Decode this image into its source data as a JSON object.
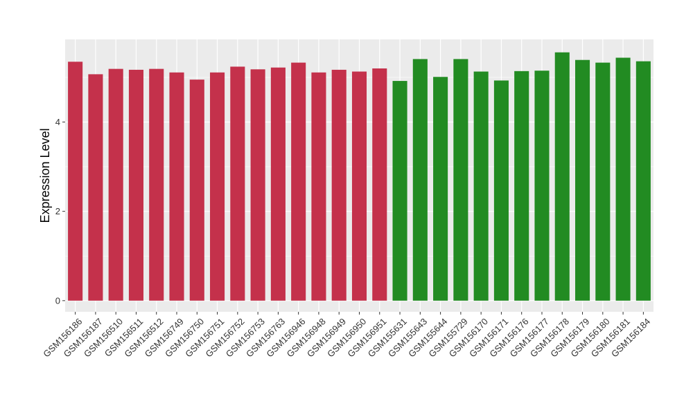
{
  "chart_data": {
    "type": "bar",
    "title": "",
    "xlabel": "",
    "ylabel": "Expression Level",
    "ylim": [
      -0.25,
      5.85
    ],
    "yticks": [
      0,
      2,
      4
    ],
    "grid": true,
    "legend": "none",
    "categories": [
      "GSM156186",
      "GSM156187",
      "GSM156510",
      "GSM156511",
      "GSM156512",
      "GSM156749",
      "GSM156750",
      "GSM156751",
      "GSM156752",
      "GSM156753",
      "GSM156763",
      "GSM156946",
      "GSM156948",
      "GSM156949",
      "GSM156950",
      "GSM156951",
      "GSM155631",
      "GSM155643",
      "GSM155644",
      "GSM155729",
      "GSM156170",
      "GSM156171",
      "GSM156176",
      "GSM156177",
      "GSM156178",
      "GSM156179",
      "GSM156180",
      "GSM156181",
      "GSM156184"
    ],
    "values": [
      5.35,
      5.07,
      5.19,
      5.17,
      5.19,
      5.11,
      4.95,
      5.11,
      5.24,
      5.18,
      5.22,
      5.33,
      5.11,
      5.17,
      5.13,
      5.2,
      4.92,
      5.41,
      5.01,
      5.41,
      5.13,
      4.93,
      5.14,
      5.15,
      5.56,
      5.39,
      5.33,
      5.44,
      5.36
    ],
    "groups": [
      "a",
      "a",
      "a",
      "a",
      "a",
      "a",
      "a",
      "a",
      "a",
      "a",
      "a",
      "a",
      "a",
      "a",
      "a",
      "a",
      "b",
      "b",
      "b",
      "b",
      "b",
      "b",
      "b",
      "b",
      "b",
      "b",
      "b",
      "b",
      "b"
    ],
    "colors": {
      "a": "#c4314b",
      "b": "#228b22"
    },
    "panel_background": "#ebebeb",
    "gridline_color": "#ffffff"
  }
}
